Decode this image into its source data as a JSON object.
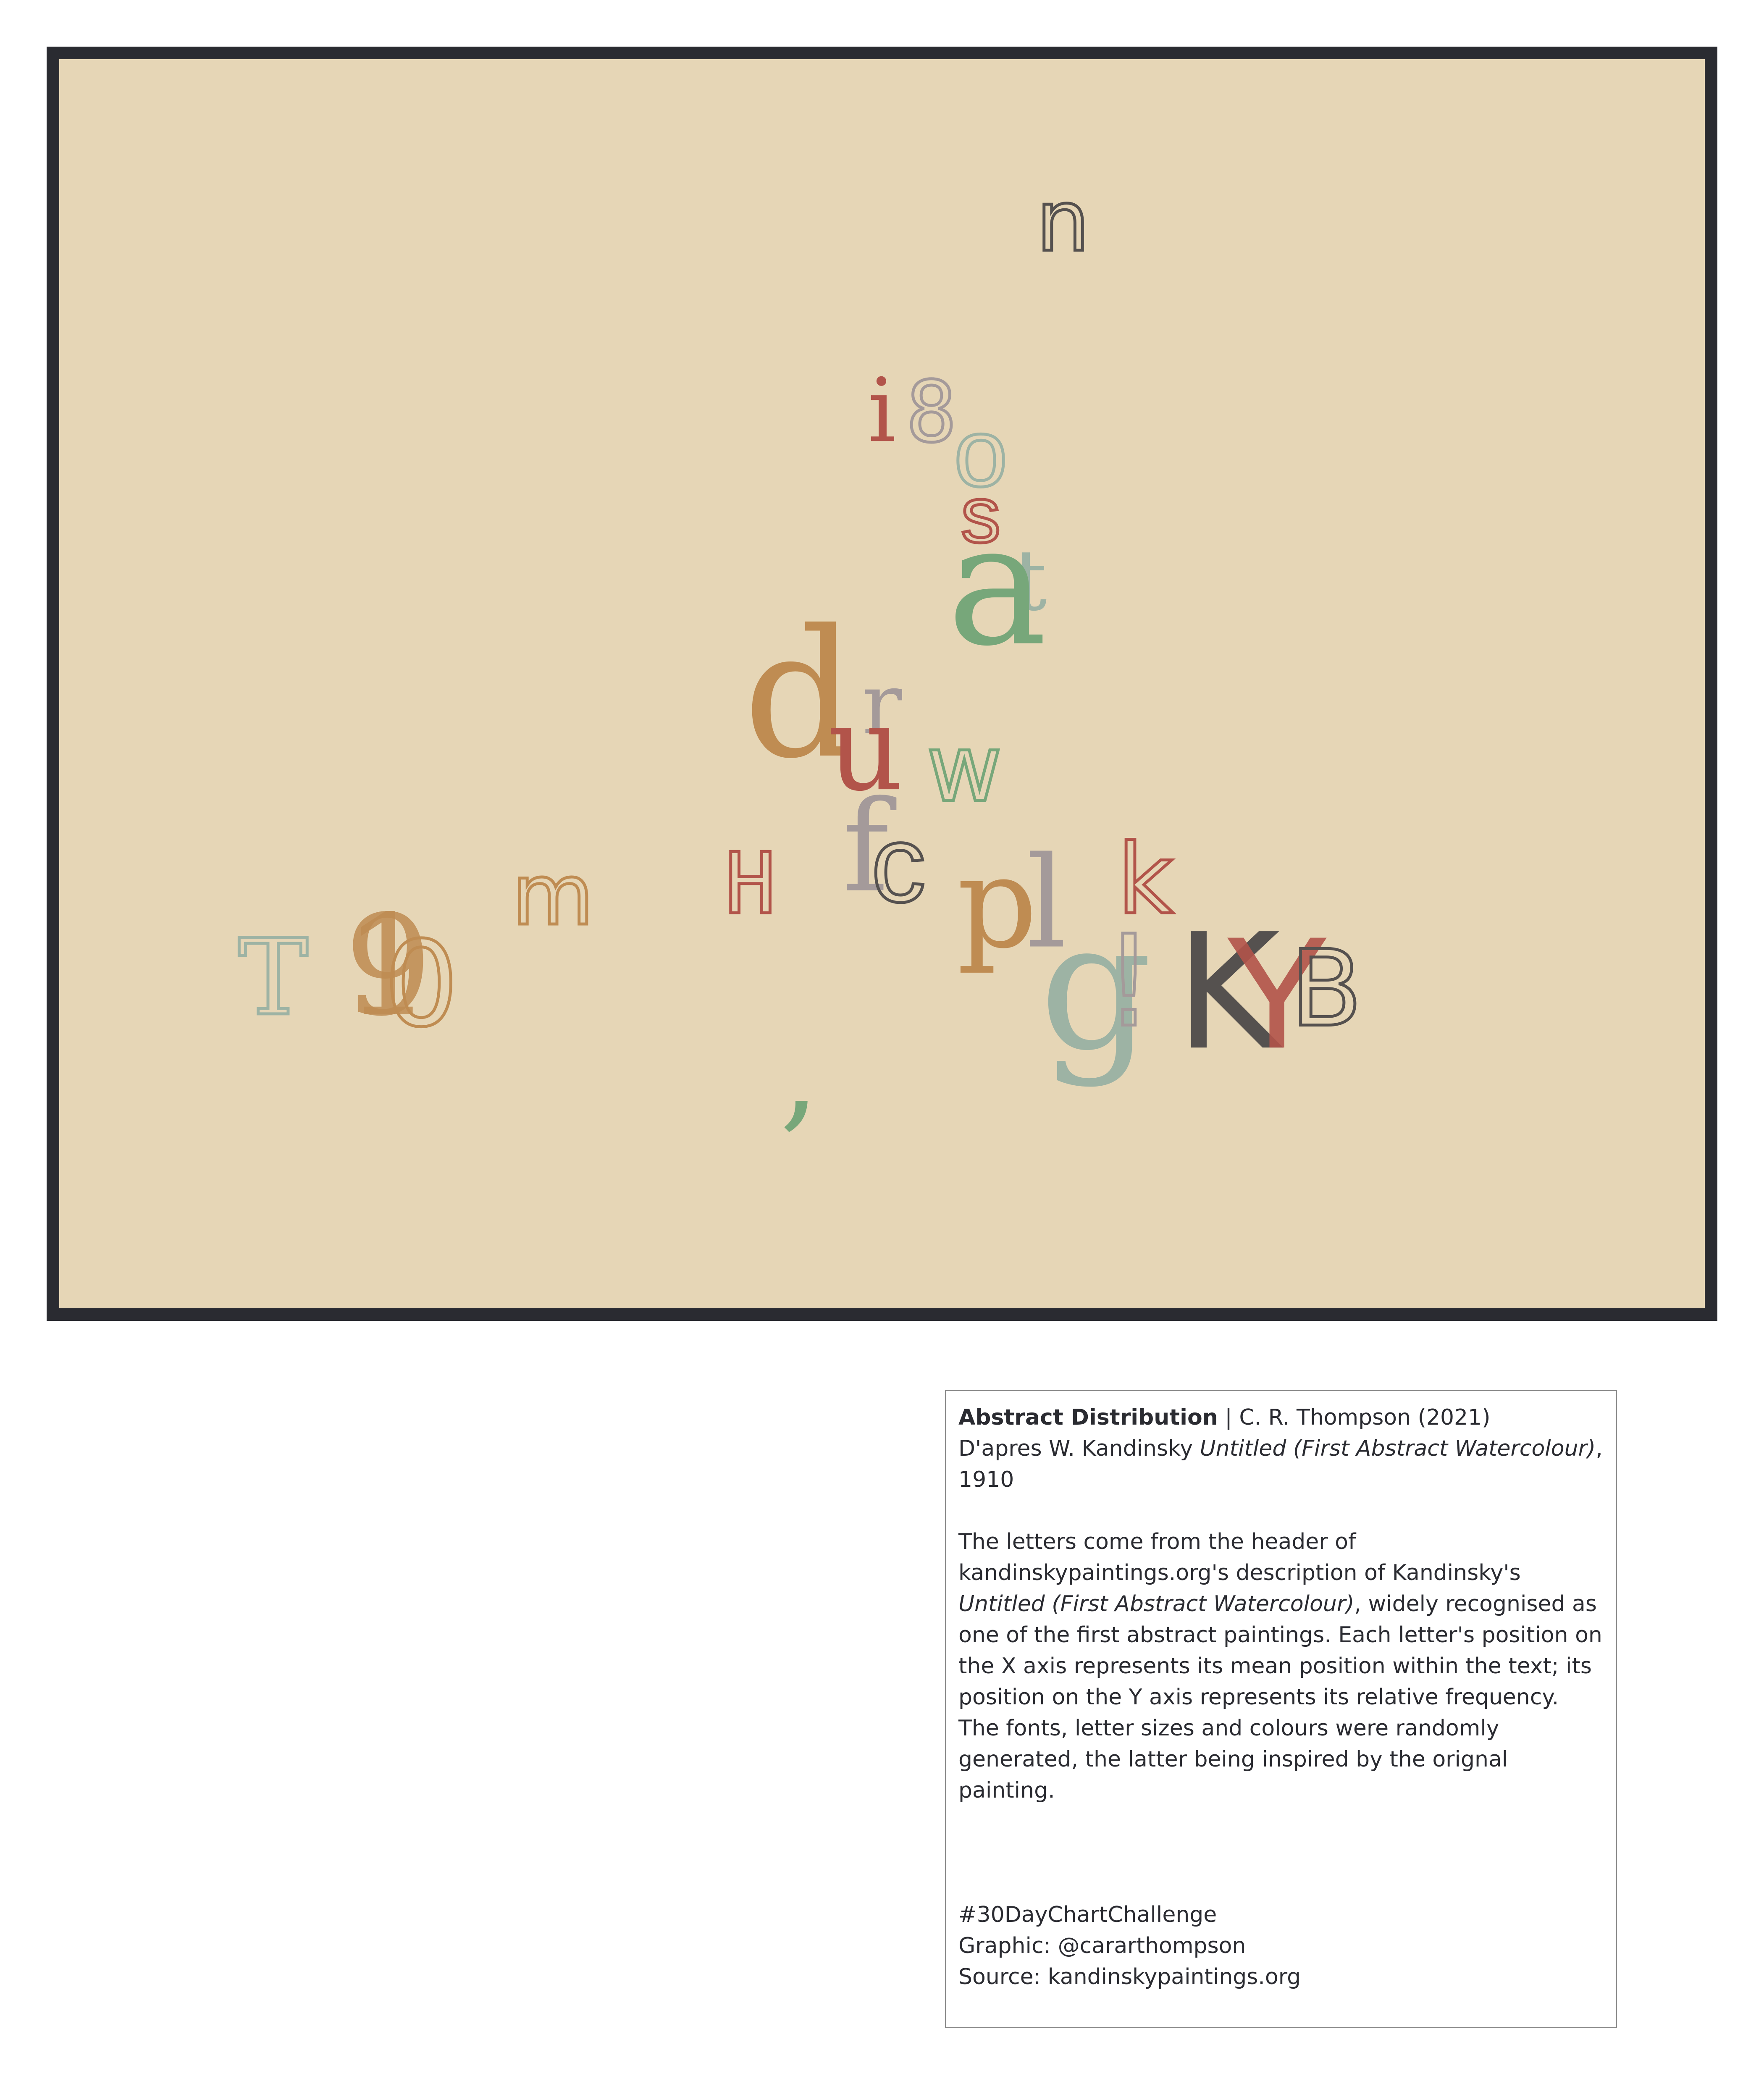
{
  "chart_data": {
    "type": "scatter",
    "title": "Abstract Distribution",
    "xlabel": "mean position within the text",
    "ylabel": "relative frequency",
    "xlim": [
      0,
      100
    ],
    "ylim": [
      0,
      100
    ],
    "grid": false,
    "points": [
      {
        "char": "n",
        "x": 61,
        "y": 83,
        "color": "#55514f",
        "font": "\"DejaVu Sans\", sans-serif",
        "style": "outline"
      },
      {
        "char": "i",
        "x": 50,
        "y": 66,
        "color": "#b2544a",
        "font": "\"DejaVu Serif\", serif",
        "style": "fill"
      },
      {
        "char": "8",
        "x": 53,
        "y": 66,
        "color": "#a49a9a",
        "font": "\"DejaVu Sans Mono\", monospace",
        "style": "outline"
      },
      {
        "char": "o",
        "x": 56,
        "y": 62,
        "color": "#9db3a4",
        "font": "\"Liberation Sans\", sans-serif",
        "style": "outline"
      },
      {
        "char": "s",
        "x": 56,
        "y": 57,
        "color": "#b2544a",
        "font": "\"Liberation Sans\", sans-serif",
        "style": "outline"
      },
      {
        "char": "t",
        "x": 59,
        "y": 51,
        "color": "#9db3a4",
        "font": "\"DejaVu Serif\", serif",
        "style": "fill"
      },
      {
        "char": "a",
        "x": 57,
        "y": 48,
        "color": "#77a77a",
        "font": "\"DejaVu Serif\", serif",
        "style": "fill"
      },
      {
        "char": "d",
        "x": 45,
        "y": 38,
        "color": "#bf8c52",
        "font": "\"DejaVu Serif\", serif",
        "style": "fill"
      },
      {
        "char": "r",
        "x": 50,
        "y": 40,
        "color": "#a49a9a",
        "font": "\"DejaVu Serif\", serif",
        "style": "fill"
      },
      {
        "char": "u",
        "x": 49,
        "y": 35,
        "color": "#b2544a",
        "font": "\"DejaVu Serif\", serif",
        "style": "fill"
      },
      {
        "char": "w",
        "x": 55,
        "y": 34,
        "color": "#77a77a",
        "font": "\"DejaVu Sans\", sans-serif",
        "style": "outline"
      },
      {
        "char": "f",
        "x": 49,
        "y": 26,
        "color": "#a49a9a",
        "font": "\"DejaVu Serif\", serif",
        "style": "fill"
      },
      {
        "char": "c",
        "x": 51,
        "y": 25,
        "color": "#55514f",
        "font": "\"Liberation Sans\", sans-serif",
        "style": "outline"
      },
      {
        "char": "H",
        "x": 42,
        "y": 24,
        "color": "#b2544a",
        "font": "\"DejaVu Sans Mono\", monospace",
        "style": "outline"
      },
      {
        "char": "m",
        "x": 30,
        "y": 23,
        "color": "#bf8c52",
        "font": "\"DejaVu Sans\", sans-serif",
        "style": "outline"
      },
      {
        "char": "p",
        "x": 57,
        "y": 21,
        "color": "#bf8c52",
        "font": "\"DejaVu Serif\", serif",
        "style": "fill"
      },
      {
        "char": "l",
        "x": 60,
        "y": 21,
        "color": "#a49a9a",
        "font": "\"DejaVu Serif\", serif",
        "style": "fill"
      },
      {
        "char": "g",
        "x": 63,
        "y": 12,
        "color": "#9db3a4",
        "font": "\"DejaVu Serif\", serif",
        "style": "fill"
      },
      {
        "char": "k",
        "x": 66,
        "y": 24,
        "color": "#b2544a",
        "font": "\"DejaVu Sans\", sans-serif",
        "style": "outline"
      },
      {
        "char": "!",
        "x": 65,
        "y": 14,
        "color": "#a49a9a",
        "font": "\"DejaVu Sans Mono\", monospace",
        "style": "outline"
      },
      {
        "char": "K",
        "x": 71,
        "y": 12,
        "color": "#55514f",
        "font": "\"DejaVu Sans\", sans-serif",
        "style": "fill"
      },
      {
        "char": "Y",
        "x": 74,
        "y": 12,
        "color": "#b2544a",
        "font": "\"Liberation Sans\", sans-serif",
        "style": "fill",
        "opacity": 0.9
      },
      {
        "char": "B",
        "x": 77,
        "y": 14,
        "color": "#55514f",
        "font": "\"DejaVu Sans\", sans-serif",
        "style": "outline"
      },
      {
        "char": ",",
        "x": 45,
        "y": 6,
        "color": "#77a77a",
        "font": "\"DejaVu Serif\", serif",
        "style": "fill"
      },
      {
        "char": "T",
        "x": 13,
        "y": 15,
        "color": "#9db3a4",
        "font": "\"DejaVu Serif\", serif",
        "style": "outline"
      },
      {
        "char": "1",
        "x": 20,
        "y": 15,
        "color": "#bf8c52",
        "font": "\"DejaVu Serif\", serif",
        "style": "fill",
        "opacity": 0.85
      },
      {
        "char": "9",
        "x": 20,
        "y": 15,
        "color": "#bf8c52",
        "font": "\"DejaVu Serif\", serif",
        "style": "fill",
        "opacity": 0.85
      },
      {
        "char": "0",
        "x": 22,
        "y": 14,
        "color": "#bf8c52",
        "font": "\"DejaVu Sans\", sans-serif",
        "style": "outline"
      }
    ]
  },
  "caption": {
    "title": "Abstract Distribution",
    "author": " | C. R. Thompson (2021)",
    "apres_prefix": "D'apres W. Kandinsky ",
    "apres_work": "Untitled (First Abstract Watercolour)",
    "apres_year": ", 1910",
    "desc_part1": "The letters come from the header of kandinskypaintings.org's description of Kandinsky's ",
    "desc_work": "Untitled (First Abstract Watercolour)",
    "desc_part2": ", widely recognised as one of the first abstract paintings. Each letter's position on the X axis represents its mean position within the text; its position on the Y axis represents its relative frequency. The fonts, letter sizes and colours were randomly generated, the latter being inspired by the orignal painting.",
    "hashtag": "#30DayChartChallenge",
    "graphic": "Graphic: @cararthompson",
    "source": "Source: kandinskypaintings.org"
  }
}
